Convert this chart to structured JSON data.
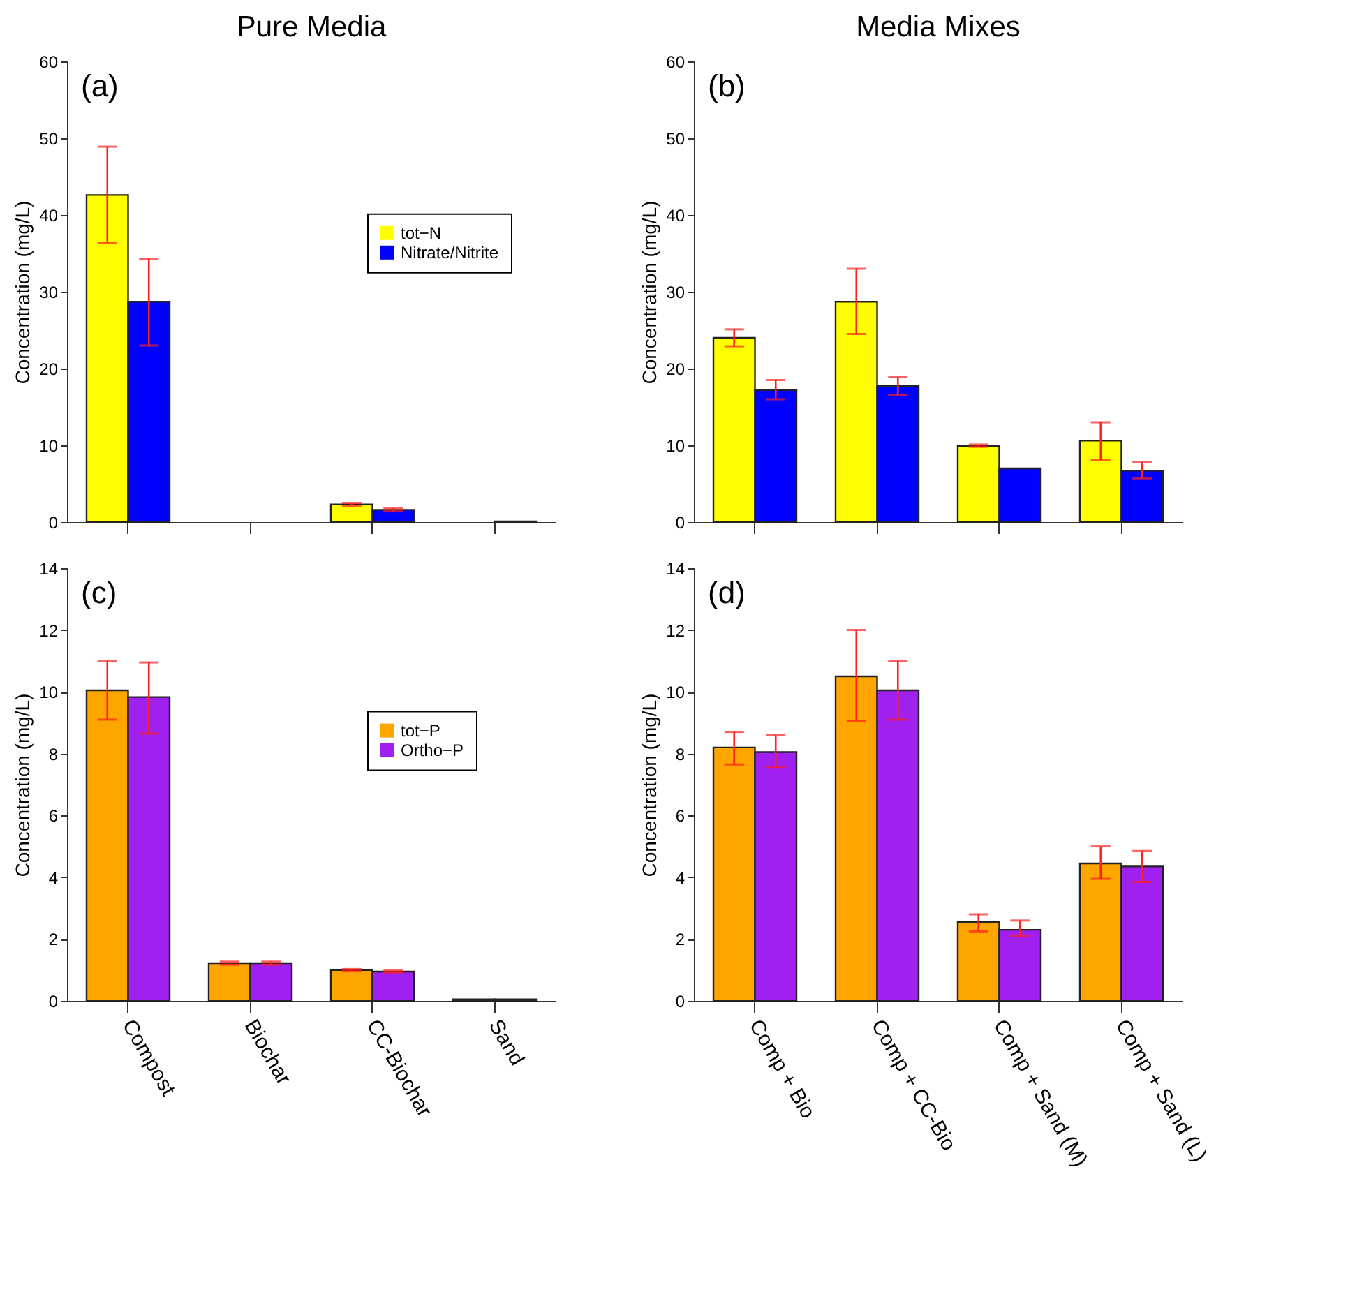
{
  "chart_data": [
    {
      "type": "bar",
      "title": "Pure Media",
      "ylabel": "Concentration (mg/L)",
      "annotations": [
        "(a)"
      ],
      "categories": [
        null,
        null,
        null,
        null
      ],
      "ylim": [
        0,
        60
      ],
      "yticks": [
        0,
        10,
        20,
        30,
        40,
        50,
        60
      ],
      "tick_labels": "y",
      "legend": "right",
      "series": [
        {
          "name": "tot−N",
          "color": "#ffff00",
          "values": [
            42.6,
            null,
            2.3,
            null
          ],
          "errors": [
            [
              36.4,
              48.9
            ],
            null,
            [
              2.1,
              2.5
            ],
            null
          ]
        },
        {
          "name": "Nitrate/Nitrite",
          "color": "#0000ff",
          "values": [
            28.7,
            null,
            1.6,
            0.1
          ],
          "errors": [
            [
              23,
              34.3
            ],
            null,
            [
              1.4,
              1.8
            ],
            null
          ]
        }
      ]
    },
    {
      "type": "bar",
      "title": "Media Mixes",
      "ylabel": "Concentration (mg/L)",
      "annotations": [
        "(b)"
      ],
      "categories": [
        null,
        null,
        null,
        null
      ],
      "ylim": [
        0,
        60
      ],
      "yticks": [
        0,
        10,
        20,
        30,
        40,
        50,
        60
      ],
      "tick_labels": "y",
      "series": [
        {
          "color": "#ffff00",
          "values": [
            24,
            28.7,
            9.9,
            10.6
          ],
          "errors": [
            [
              22.9,
              25.1
            ],
            [
              24.5,
              33
            ],
            [
              9.8,
              10.1
            ],
            [
              8.1,
              13
            ]
          ]
        },
        {
          "color": "#0000ff",
          "values": [
            17.2,
            17.7,
            7,
            6.7
          ],
          "errors": [
            [
              16,
              18.5
            ],
            [
              16.5,
              18.9
            ],
            null,
            [
              5.7,
              7.8
            ]
          ]
        }
      ]
    },
    {
      "type": "bar",
      "ylabel": "Concentration (mg/L)",
      "annotations": [
        "(c)"
      ],
      "categories": [
        "Compost",
        "Biochar",
        "CC-Biochar",
        "Sand"
      ],
      "ylim": [
        0,
        14
      ],
      "yticks": [
        0,
        2,
        4,
        6,
        8,
        10,
        12,
        14
      ],
      "legend": "right",
      "series": [
        {
          "name": "tot−P",
          "color": "#ffa500",
          "values": [
            10.05,
            1.22,
            1.0,
            0.05
          ],
          "errors": [
            [
              9.1,
              11.0
            ],
            [
              1.17,
              1.27
            ],
            [
              0.97,
              1.03
            ],
            null
          ]
        },
        {
          "name": "Ortho−P",
          "color": "#a020f0",
          "values": [
            9.83,
            1.22,
            0.95,
            0.05
          ],
          "errors": [
            [
              8.65,
              10.95
            ],
            [
              1.17,
              1.27
            ],
            [
              0.92,
              0.98
            ],
            null
          ]
        }
      ]
    },
    {
      "type": "bar",
      "ylabel": "Concentration (mg/L)",
      "annotations": [
        "(d)"
      ],
      "categories": [
        "Comp + Bio",
        "Comp + CC-Bio",
        "Comp + Sand (M)",
        "Comp + Sand (L)"
      ],
      "ylim": [
        0,
        14
      ],
      "yticks": [
        0,
        2,
        4,
        6,
        8,
        10,
        12,
        14
      ],
      "series": [
        {
          "color": "#ffa500",
          "values": [
            8.2,
            10.5,
            2.55,
            4.45
          ],
          "errors": [
            [
              7.65,
              8.7
            ],
            [
              9.05,
              12.0
            ],
            [
              2.25,
              2.8
            ],
            [
              3.95,
              5.0
            ]
          ]
        },
        {
          "color": "#a020f0",
          "values": [
            8.05,
            10.05,
            2.3,
            4.35
          ],
          "errors": [
            [
              7.55,
              8.6
            ],
            [
              9.1,
              11.0
            ],
            [
              2.1,
              2.6
            ],
            [
              3.85,
              4.85
            ]
          ]
        }
      ]
    }
  ]
}
